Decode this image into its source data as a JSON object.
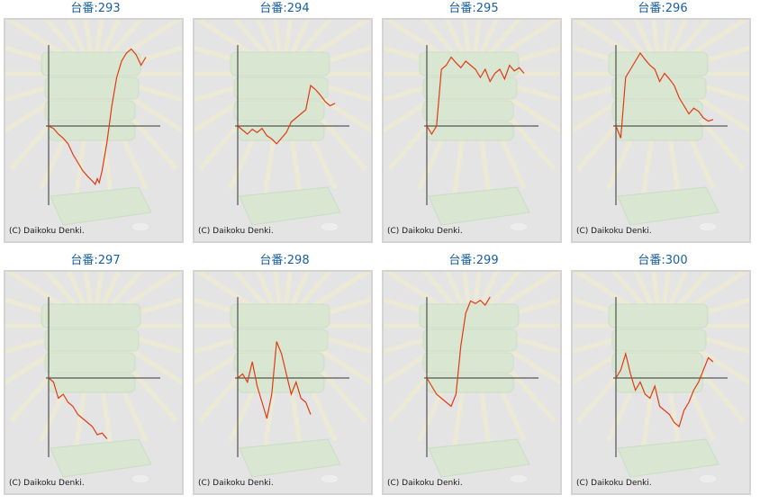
{
  "chart_data": [
    {
      "type": "line",
      "title": "台番:293",
      "credit": "(C) Daikoku Denki.",
      "color": "#e23a12",
      "values": [
        [
          0,
          0
        ],
        [
          5,
          -3
        ],
        [
          10,
          -10
        ],
        [
          15,
          -15
        ],
        [
          20,
          -22
        ],
        [
          25,
          -35
        ],
        [
          30,
          -45
        ],
        [
          35,
          -55
        ],
        [
          40,
          -62
        ],
        [
          45,
          -68
        ],
        [
          48,
          -72
        ],
        [
          50,
          -65
        ],
        [
          52,
          -70
        ],
        [
          55,
          -55
        ],
        [
          60,
          -20
        ],
        [
          65,
          25
        ],
        [
          70,
          60
        ],
        [
          75,
          80
        ],
        [
          80,
          90
        ],
        [
          85,
          95
        ],
        [
          90,
          88
        ],
        [
          95,
          75
        ],
        [
          100,
          85
        ]
      ]
    },
    {
      "type": "line",
      "title": "台番:294",
      "credit": "(C) Daikoku Denki.",
      "color": "#e23a12",
      "values": [
        [
          0,
          0
        ],
        [
          5,
          -5
        ],
        [
          10,
          -10
        ],
        [
          15,
          -4
        ],
        [
          20,
          -8
        ],
        [
          25,
          -3
        ],
        [
          30,
          -12
        ],
        [
          35,
          -16
        ],
        [
          40,
          -22
        ],
        [
          45,
          -15
        ],
        [
          50,
          -8
        ],
        [
          55,
          5
        ],
        [
          60,
          10
        ],
        [
          65,
          15
        ],
        [
          70,
          20
        ],
        [
          75,
          50
        ],
        [
          80,
          45
        ],
        [
          85,
          38
        ],
        [
          90,
          30
        ],
        [
          95,
          25
        ],
        [
          100,
          28
        ]
      ]
    },
    {
      "type": "line",
      "title": "台番:295",
      "credit": "(C) Daikoku Denki.",
      "color": "#e23a12",
      "values": [
        [
          0,
          0
        ],
        [
          5,
          -10
        ],
        [
          10,
          0
        ],
        [
          15,
          70
        ],
        [
          20,
          75
        ],
        [
          25,
          85
        ],
        [
          30,
          78
        ],
        [
          35,
          72
        ],
        [
          40,
          80
        ],
        [
          45,
          75
        ],
        [
          50,
          70
        ],
        [
          55,
          60
        ],
        [
          60,
          70
        ],
        [
          65,
          55
        ],
        [
          70,
          65
        ],
        [
          75,
          70
        ],
        [
          80,
          58
        ],
        [
          85,
          75
        ],
        [
          90,
          68
        ],
        [
          95,
          72
        ],
        [
          100,
          65
        ]
      ]
    },
    {
      "type": "line",
      "title": "台番:296",
      "credit": "(C) Daikoku Denki.",
      "color": "#e23a12",
      "values": [
        [
          0,
          0
        ],
        [
          5,
          -15
        ],
        [
          10,
          60
        ],
        [
          15,
          70
        ],
        [
          20,
          80
        ],
        [
          25,
          90
        ],
        [
          30,
          82
        ],
        [
          35,
          75
        ],
        [
          40,
          70
        ],
        [
          45,
          55
        ],
        [
          50,
          65
        ],
        [
          55,
          58
        ],
        [
          60,
          50
        ],
        [
          65,
          35
        ],
        [
          70,
          25
        ],
        [
          75,
          15
        ],
        [
          80,
          22
        ],
        [
          85,
          18
        ],
        [
          90,
          10
        ],
        [
          95,
          6
        ],
        [
          100,
          8
        ]
      ]
    },
    {
      "type": "line",
      "title": "台番:297",
      "credit": "(C) Daikoku Denki.",
      "color": "#e23a12",
      "values": [
        [
          0,
          0
        ],
        [
          5,
          -5
        ],
        [
          10,
          -25
        ],
        [
          15,
          -20
        ],
        [
          20,
          -30
        ],
        [
          25,
          -35
        ],
        [
          30,
          -45
        ],
        [
          35,
          -50
        ],
        [
          40,
          -55
        ],
        [
          45,
          -60
        ],
        [
          50,
          -70
        ],
        [
          55,
          -68
        ],
        [
          60,
          -75
        ]
      ]
    },
    {
      "type": "line",
      "title": "台番:298",
      "credit": "(C) Daikoku Denki.",
      "color": "#e23a12",
      "values": [
        [
          0,
          0
        ],
        [
          5,
          5
        ],
        [
          10,
          -5
        ],
        [
          15,
          20
        ],
        [
          20,
          -10
        ],
        [
          25,
          -30
        ],
        [
          30,
          -50
        ],
        [
          35,
          -20
        ],
        [
          40,
          45
        ],
        [
          45,
          30
        ],
        [
          50,
          5
        ],
        [
          55,
          -20
        ],
        [
          60,
          -5
        ],
        [
          65,
          -25
        ],
        [
          70,
          -30
        ],
        [
          75,
          -45
        ]
      ]
    },
    {
      "type": "line",
      "title": "台番:299",
      "credit": "(C) Daikoku Denki.",
      "color": "#e23a12",
      "values": [
        [
          0,
          0
        ],
        [
          5,
          -10
        ],
        [
          10,
          -20
        ],
        [
          15,
          -25
        ],
        [
          20,
          -30
        ],
        [
          25,
          -35
        ],
        [
          30,
          -20
        ],
        [
          35,
          40
        ],
        [
          40,
          80
        ],
        [
          45,
          95
        ],
        [
          50,
          92
        ],
        [
          55,
          96
        ],
        [
          60,
          90
        ],
        [
          65,
          100
        ]
      ]
    },
    {
      "type": "line",
      "title": "台番:300",
      "credit": "(C) Daikoku Denki.",
      "color": "#e23a12",
      "values": [
        [
          0,
          0
        ],
        [
          5,
          10
        ],
        [
          10,
          30
        ],
        [
          15,
          5
        ],
        [
          20,
          -15
        ],
        [
          25,
          -5
        ],
        [
          30,
          -20
        ],
        [
          35,
          -25
        ],
        [
          40,
          -10
        ],
        [
          45,
          -35
        ],
        [
          50,
          -40
        ],
        [
          55,
          -45
        ],
        [
          60,
          -55
        ],
        [
          65,
          -60
        ],
        [
          70,
          -40
        ],
        [
          75,
          -30
        ],
        [
          80,
          -15
        ],
        [
          85,
          -5
        ],
        [
          90,
          10
        ],
        [
          95,
          25
        ],
        [
          100,
          20
        ]
      ]
    }
  ]
}
